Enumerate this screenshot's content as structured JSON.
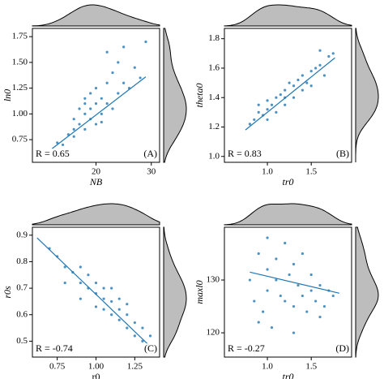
{
  "chart_data": [
    {
      "type": "scatter",
      "xlabel": "NB",
      "ylabel": "ln0",
      "R": "R = 0.65",
      "panel": "(A)",
      "xlim": [
        8.5,
        31.5
      ],
      "ylim": [
        0.53,
        1.83
      ],
      "xticks": [
        20,
        30
      ],
      "yticks": [
        0.75,
        {
          "value": 1,
          "label": "1.00"
        },
        1.25,
        {
          "value": 1.5,
          "label": "1.50"
        },
        1.75
      ],
      "x": [
        14,
        15,
        16,
        16,
        17,
        17,
        18,
        18,
        18,
        19,
        19,
        19,
        20,
        20,
        20,
        21,
        21,
        22,
        22,
        23,
        23,
        24,
        24,
        25,
        26,
        27,
        28,
        16,
        18,
        21,
        22,
        25,
        29,
        13
      ],
      "y": [
        0.7,
        0.8,
        0.85,
        0.95,
        0.9,
        1.05,
        0.85,
        1.0,
        1.1,
        0.95,
        1.05,
        1.2,
        0.9,
        1.1,
        1.25,
        1.0,
        1.15,
        1.1,
        1.3,
        1.05,
        1.4,
        1.2,
        1.5,
        1.3,
        1.25,
        1.45,
        1.35,
        0.78,
        1.15,
        0.92,
        1.6,
        1.65,
        1.7,
        0.72
      ],
      "fit": {
        "x": [
          12,
          29
        ],
        "y": [
          0.66,
          1.36
        ]
      },
      "color": "#1f77b4",
      "marginal_color": "#bdbdbd"
    },
    {
      "type": "scatter",
      "xlabel": "tr0",
      "ylabel": "theta0",
      "R": "R = 0.83",
      "panel": "(B)",
      "xlim": [
        0.51,
        1.96
      ],
      "ylim": [
        0.96,
        1.87
      ],
      "xticks": [
        {
          "value": 1,
          "label": "1.0"
        },
        1.5
      ],
      "yticks": [
        {
          "value": 1,
          "label": "1.0"
        },
        1.2,
        1.4,
        1.6,
        1.8
      ],
      "x": [
        0.8,
        0.85,
        0.9,
        0.95,
        1.0,
        1.0,
        1.05,
        1.1,
        1.1,
        1.15,
        1.2,
        1.2,
        1.25,
        1.3,
        1.3,
        1.35,
        1.4,
        1.45,
        1.5,
        1.5,
        1.55,
        1.6,
        1.65,
        1.7,
        1.75,
        1.0,
        1.2,
        1.4,
        1.6,
        0.9
      ],
      "y": [
        1.22,
        1.25,
        1.3,
        1.28,
        1.32,
        1.38,
        1.35,
        1.4,
        1.3,
        1.42,
        1.45,
        1.35,
        1.5,
        1.48,
        1.4,
        1.52,
        1.55,
        1.5,
        1.58,
        1.48,
        1.6,
        1.62,
        1.55,
        1.68,
        1.7,
        1.25,
        1.4,
        1.45,
        1.72,
        1.35
      ],
      "fit": {
        "x": [
          0.75,
          1.77
        ],
        "y": [
          1.18,
          1.67
        ]
      },
      "color": "#1f77b4",
      "marginal_color": "#bdbdbd"
    },
    {
      "type": "scatter",
      "xlabel": "r0",
      "ylabel": "r0s",
      "R": "R = -0.74",
      "panel": "(C)",
      "xlim": [
        0.59,
        1.41
      ],
      "ylim": [
        0.44,
        0.93
      ],
      "xticks": [
        0.75,
        {
          "value": 1,
          "label": "1.00"
        },
        1.25
      ],
      "yticks": [
        0.5,
        0.6,
        0.7,
        0.8,
        0.9
      ],
      "x": [
        0.7,
        0.75,
        0.8,
        0.85,
        0.9,
        0.95,
        0.95,
        1.0,
        1.0,
        1.05,
        1.05,
        1.1,
        1.1,
        1.1,
        1.15,
        1.15,
        1.2,
        1.2,
        1.25,
        1.25,
        1.3,
        1.3,
        0.8,
        0.9,
        1.0,
        1.15,
        1.2,
        1.35,
        1.05,
        0.9
      ],
      "y": [
        0.85,
        0.82,
        0.78,
        0.76,
        0.72,
        0.7,
        0.75,
        0.68,
        0.72,
        0.66,
        0.62,
        0.65,
        0.6,
        0.7,
        0.62,
        0.58,
        0.6,
        0.55,
        0.57,
        0.52,
        0.55,
        0.5,
        0.72,
        0.66,
        0.63,
        0.66,
        0.64,
        0.52,
        0.7,
        0.78
      ],
      "fit": {
        "x": [
          0.62,
          1.35
        ],
        "y": [
          0.89,
          0.48
        ]
      },
      "color": "#1f77b4",
      "marginal_color": "#bdbdbd"
    },
    {
      "type": "scatter",
      "xlabel": "tr0",
      "ylabel": "maxl0",
      "R": "R = -0.27",
      "panel": "(D)",
      "xlim": [
        0.51,
        1.96
      ],
      "ylim": [
        115.4,
        140
      ],
      "xticks": [
        {
          "value": 1,
          "label": "1.0"
        },
        1.5
      ],
      "yticks": [
        120,
        130
      ],
      "x": [
        0.8,
        0.85,
        0.9,
        0.95,
        1.0,
        1.0,
        1.05,
        1.1,
        1.1,
        1.15,
        1.2,
        1.25,
        1.3,
        1.3,
        1.35,
        1.4,
        1.45,
        1.5,
        1.5,
        1.55,
        1.6,
        1.65,
        1.7,
        1.75,
        0.9,
        1.2,
        1.4,
        1.6,
        1.0,
        1.3
      ],
      "y": [
        130,
        126,
        135,
        124,
        132,
        128,
        121,
        130,
        134,
        127,
        126,
        131,
        125,
        133,
        129,
        127,
        124,
        128,
        131,
        126,
        129,
        125,
        128,
        127,
        122,
        137,
        135,
        123,
        138,
        120
      ],
      "fit": {
        "x": [
          0.8,
          1.82
        ],
        "y": [
          131.5,
          127.5
        ]
      },
      "color": "#1f77b4",
      "marginal_color": "#bdbdbd"
    }
  ]
}
